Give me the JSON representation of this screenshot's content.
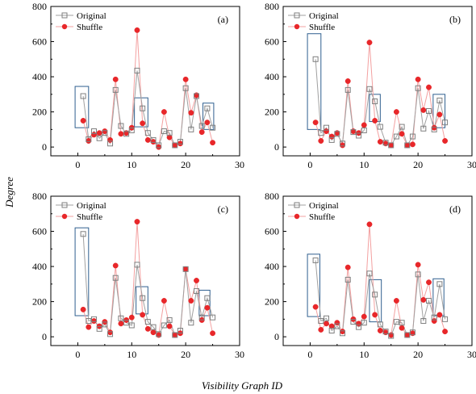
{
  "figure": {
    "ylabel": "Degree",
    "xlabel": "Visibility Graph ID"
  },
  "chart_data": [
    {
      "type": "line",
      "panel_label": "(a)",
      "xlim": [
        -5,
        30
      ],
      "ylim": [
        -50,
        800
      ],
      "xticks": [
        0,
        10,
        20,
        30
      ],
      "yticks": [
        0,
        200,
        400,
        600,
        800
      ],
      "legend_position": "top-left",
      "series": [
        {
          "name": "Original",
          "marker": "square",
          "color": "#7f7f7f",
          "line_color": "#a0a0a0",
          "x": [
            1,
            2,
            3,
            4,
            5,
            6,
            7,
            8,
            9,
            10,
            11,
            12,
            13,
            14,
            15,
            16,
            17,
            18,
            19,
            20,
            21,
            22,
            23,
            24,
            25
          ],
          "y": [
            290,
            45,
            90,
            50,
            80,
            20,
            325,
            120,
            75,
            95,
            435,
            220,
            80,
            40,
            10,
            90,
            80,
            10,
            30,
            335,
            100,
            290,
            120,
            220,
            110
          ]
        },
        {
          "name": "Shuffle",
          "marker": "circle",
          "color": "#e8272a",
          "line_color": "#f3a0a0",
          "x": [
            1,
            2,
            3,
            4,
            5,
            6,
            7,
            8,
            9,
            10,
            11,
            12,
            13,
            14,
            15,
            16,
            17,
            18,
            19,
            20,
            21,
            22,
            23,
            24,
            25
          ],
          "y": [
            150,
            35,
            70,
            80,
            90,
            40,
            385,
            75,
            80,
            110,
            665,
            135,
            40,
            30,
            0,
            200,
            55,
            10,
            20,
            385,
            195,
            295,
            85,
            140,
            25
          ]
        }
      ],
      "boxes": [
        {
          "x": [
            -0.5,
            2
          ],
          "y": [
            110,
            345
          ]
        },
        {
          "x": [
            10.5,
            13
          ],
          "y": [
            115,
            280
          ]
        },
        {
          "x": [
            23.2,
            25.2
          ],
          "y": [
            100,
            250
          ]
        }
      ]
    },
    {
      "type": "line",
      "panel_label": "(b)",
      "xlim": [
        -5,
        30
      ],
      "ylim": [
        -50,
        800
      ],
      "xticks": [
        0,
        10,
        20,
        30
      ],
      "yticks": [
        0,
        200,
        400,
        600,
        800
      ],
      "legend_position": "top-left",
      "series": [
        {
          "name": "Original",
          "marker": "square",
          "color": "#7f7f7f",
          "line_color": "#a0a0a0",
          "x": [
            1,
            2,
            3,
            4,
            5,
            6,
            7,
            8,
            9,
            10,
            11,
            12,
            13,
            14,
            15,
            16,
            17,
            18,
            19,
            20,
            21,
            22,
            23,
            24,
            25
          ],
          "y": [
            500,
            80,
            110,
            40,
            75,
            20,
            325,
            85,
            65,
            95,
            330,
            260,
            115,
            25,
            10,
            60,
            115,
            10,
            60,
            335,
            105,
            205,
            100,
            265,
            140
          ]
        },
        {
          "name": "Shuffle",
          "marker": "circle",
          "color": "#e8272a",
          "line_color": "#f3a0a0",
          "x": [
            1,
            2,
            3,
            4,
            5,
            6,
            7,
            8,
            9,
            10,
            11,
            12,
            13,
            14,
            15,
            16,
            17,
            18,
            19,
            20,
            21,
            22,
            23,
            24,
            25
          ],
          "y": [
            140,
            35,
            90,
            60,
            80,
            10,
            375,
            90,
            80,
            125,
            595,
            150,
            30,
            20,
            10,
            200,
            75,
            10,
            15,
            385,
            210,
            340,
            110,
            185,
            35
          ]
        }
      ],
      "boxes": [
        {
          "x": [
            -0.5,
            2
          ],
          "y": [
            100,
            645
          ]
        },
        {
          "x": [
            11,
            13
          ],
          "y": [
            145,
            300
          ]
        },
        {
          "x": [
            22.8,
            25
          ],
          "y": [
            110,
            300
          ]
        }
      ]
    },
    {
      "type": "line",
      "panel_label": "(c)",
      "xlim": [
        -5,
        30
      ],
      "ylim": [
        -50,
        800
      ],
      "xticks": [
        0,
        10,
        20,
        30
      ],
      "yticks": [
        0,
        200,
        400,
        600,
        800
      ],
      "legend_position": "top-left",
      "series": [
        {
          "name": "Original",
          "marker": "square",
          "color": "#7f7f7f",
          "line_color": "#a0a0a0",
          "x": [
            1,
            2,
            3,
            4,
            5,
            6,
            7,
            8,
            9,
            10,
            11,
            12,
            13,
            14,
            15,
            16,
            17,
            18,
            19,
            20,
            21,
            22,
            23,
            24,
            25
          ],
          "y": [
            585,
            90,
            100,
            45,
            70,
            15,
            335,
            105,
            80,
            65,
            410,
            220,
            85,
            55,
            15,
            65,
            95,
            10,
            35,
            385,
            80,
            260,
            110,
            220,
            110
          ]
        },
        {
          "name": "Shuffle",
          "marker": "circle",
          "color": "#e8272a",
          "line_color": "#f3a0a0",
          "x": [
            1,
            2,
            3,
            4,
            5,
            6,
            7,
            8,
            9,
            10,
            11,
            12,
            13,
            14,
            15,
            16,
            17,
            18,
            19,
            20,
            21,
            22,
            23,
            24,
            25
          ],
          "y": [
            155,
            55,
            90,
            60,
            85,
            25,
            405,
            75,
            95,
            110,
            655,
            125,
            45,
            25,
            10,
            205,
            60,
            10,
            20,
            385,
            205,
            320,
            95,
            165,
            20
          ]
        }
      ],
      "boxes": [
        {
          "x": [
            -0.5,
            2
          ],
          "y": [
            120,
            620
          ]
        },
        {
          "x": [
            10.8,
            13
          ],
          "y": [
            130,
            285
          ]
        },
        {
          "x": [
            22.5,
            24.5
          ],
          "y": [
            120,
            265
          ]
        }
      ]
    },
    {
      "type": "line",
      "panel_label": "(d)",
      "xlim": [
        -5,
        30
      ],
      "ylim": [
        -50,
        800
      ],
      "xticks": [
        0,
        10,
        20,
        30
      ],
      "yticks": [
        0,
        200,
        400,
        600,
        800
      ],
      "legend_position": "top-left",
      "series": [
        {
          "name": "Original",
          "marker": "square",
          "color": "#7f7f7f",
          "line_color": "#a0a0a0",
          "x": [
            1,
            2,
            3,
            4,
            5,
            6,
            7,
            8,
            9,
            10,
            11,
            12,
            13,
            14,
            15,
            16,
            17,
            18,
            19,
            20,
            21,
            22,
            23,
            24,
            25
          ],
          "y": [
            435,
            90,
            105,
            35,
            60,
            20,
            325,
            85,
            55,
            80,
            360,
            240,
            70,
            30,
            5,
            85,
            80,
            10,
            25,
            355,
            90,
            205,
            110,
            300,
            100
          ]
        },
        {
          "name": "Shuffle",
          "marker": "circle",
          "color": "#e8272a",
          "line_color": "#f3a0a0",
          "x": [
            1,
            2,
            3,
            4,
            5,
            6,
            7,
            8,
            9,
            10,
            11,
            12,
            13,
            14,
            15,
            16,
            17,
            18,
            19,
            20,
            21,
            22,
            23,
            24,
            25
          ],
          "y": [
            170,
            40,
            75,
            60,
            80,
            30,
            395,
            100,
            75,
            115,
            640,
            125,
            35,
            25,
            10,
            205,
            50,
            10,
            20,
            410,
            210,
            310,
            90,
            125,
            30
          ]
        }
      ],
      "boxes": [
        {
          "x": [
            -0.5,
            1.8
          ],
          "y": [
            115,
            470
          ]
        },
        {
          "x": [
            11,
            13.2
          ],
          "y": [
            85,
            325
          ]
        },
        {
          "x": [
            22.8,
            24.8
          ],
          "y": [
            120,
            330
          ]
        }
      ]
    }
  ]
}
